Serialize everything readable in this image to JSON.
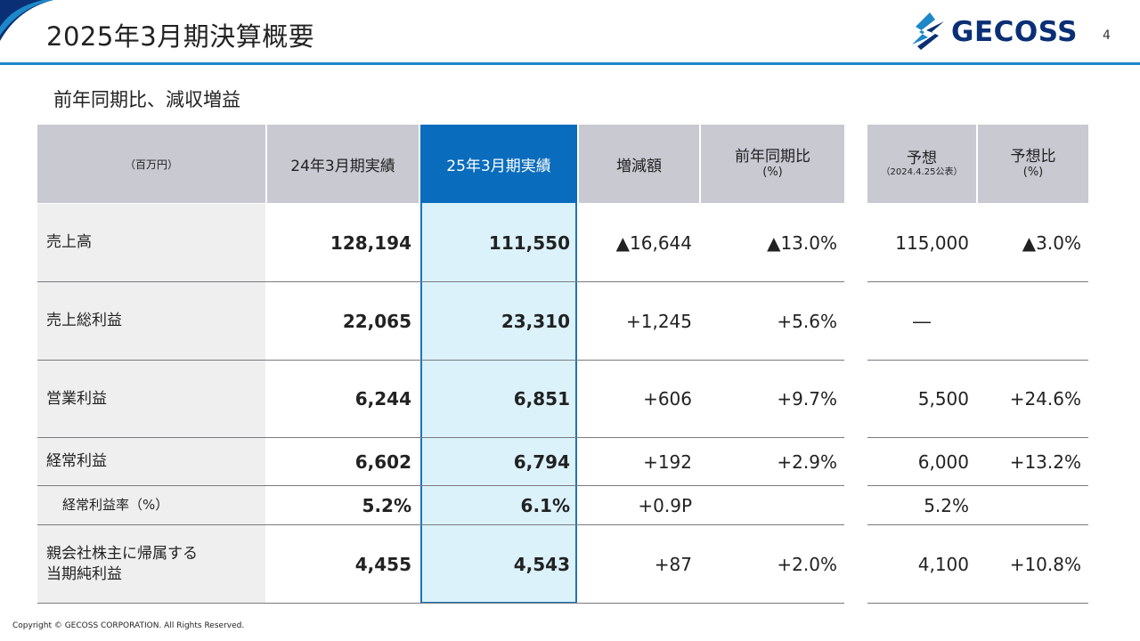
{
  "header": {
    "title": "2025年3月期決算概要",
    "logo_text": "GECOSS",
    "page_number": "4"
  },
  "subtitle": "前年同期比、減収増益",
  "table": {
    "unit": "（百万円）",
    "col_prev": "24年3月期実績",
    "col_curr": "25年3月期実績",
    "col_diff": "増減額",
    "col_yoy": "前年同期比",
    "col_yoy_unit": "(%)",
    "col_forecast": "予想",
    "col_forecast_note": "（2024.4.25公表）",
    "col_forecast_ratio": "予想比",
    "col_forecast_ratio_unit": "(%)",
    "rows": [
      {
        "label": "売上高",
        "prev": "128,194",
        "curr": "111,550",
        "diff": "▲16,644",
        "yoy": "▲13.0%",
        "forecast": "115,000",
        "forecast_ratio": "▲3.0%"
      },
      {
        "label": "売上総利益",
        "prev": "22,065",
        "curr": "23,310",
        "diff": "+1,245",
        "yoy": "+5.6%",
        "forecast": "―",
        "forecast_ratio": ""
      },
      {
        "label": "営業利益",
        "prev": "6,244",
        "curr": "6,851",
        "diff": "+606",
        "yoy": "+9.7%",
        "forecast": "5,500",
        "forecast_ratio": "+24.6%"
      },
      {
        "label": "経常利益",
        "prev": "6,602",
        "curr": "6,794",
        "diff": "+192",
        "yoy": "+2.9%",
        "forecast": "6,000",
        "forecast_ratio": "+13.2%"
      },
      {
        "label": "経常利益率（%）",
        "prev": "5.2%",
        "curr": "6.1%",
        "diff": "+0.9P",
        "yoy": "",
        "forecast": "5.2%",
        "forecast_ratio": ""
      },
      {
        "label_line1": "親会社株主に帰属する",
        "label_line2": "当期純利益",
        "prev": "4,455",
        "curr": "4,543",
        "diff": "+87",
        "yoy": "+2.0%",
        "forecast": "4,100",
        "forecast_ratio": "+10.8%"
      }
    ]
  },
  "footer": {
    "copyright": "Copyright © GECOSS CORPORATION. All Rights Reserved."
  },
  "colors": {
    "accent_blue": "#0a6cbc",
    "highlight_bg": "#dbf2fb",
    "header_gray": "#c8c9d1",
    "title_rule": "#1d87c8",
    "logo_navy": "#0a2f75"
  }
}
